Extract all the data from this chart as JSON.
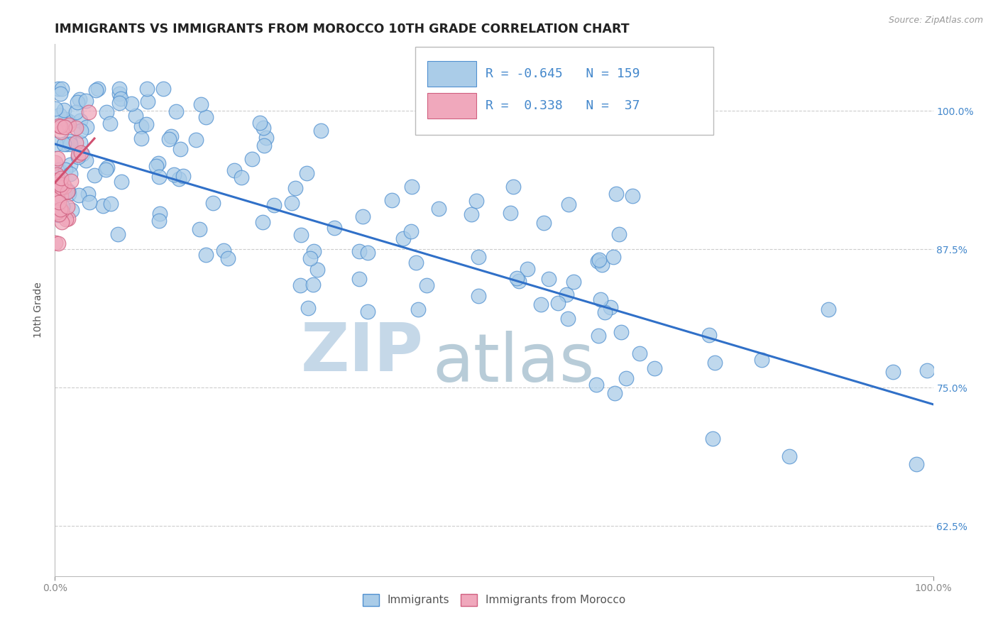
{
  "title": "IMMIGRANTS VS IMMIGRANTS FROM MOROCCO 10TH GRADE CORRELATION CHART",
  "source_text": "Source: ZipAtlas.com",
  "ylabel": "10th Grade",
  "ytick_labels": [
    "62.5%",
    "75.0%",
    "87.5%",
    "100.0%"
  ],
  "ytick_values": [
    0.625,
    0.75,
    0.875,
    1.0
  ],
  "legend_blue_r": "-0.645",
  "legend_blue_n": "159",
  "legend_pink_r": "0.338",
  "legend_pink_n": "37",
  "legend_label_blue": "Immigrants",
  "legend_label_pink": "Immigrants from Morocco",
  "blue_color": "#aacce8",
  "pink_color": "#f0a8bc",
  "blue_edge_color": "#5090d0",
  "pink_edge_color": "#d06080",
  "blue_line_color": "#3070c8",
  "pink_line_color": "#d05070",
  "watermark_ZIP": "ZIP",
  "watermark_atlas": "atlas",
  "watermark_color_ZIP": "#c5d8e8",
  "watermark_color_atlas": "#b8ccd8",
  "background_color": "#ffffff",
  "title_fontsize": 12.5,
  "legend_fontsize": 13,
  "blue_seed": 42,
  "pink_seed": 7,
  "xmin": 0.0,
  "xmax": 1.0,
  "ymin": 0.58,
  "ymax": 1.06,
  "blue_line_x0": 0.0,
  "blue_line_x1": 1.0,
  "blue_line_y0": 0.97,
  "blue_line_y1": 0.735,
  "pink_line_x0": 0.0,
  "pink_line_x1": 0.045,
  "pink_line_y0": 0.935,
  "pink_line_y1": 0.975
}
